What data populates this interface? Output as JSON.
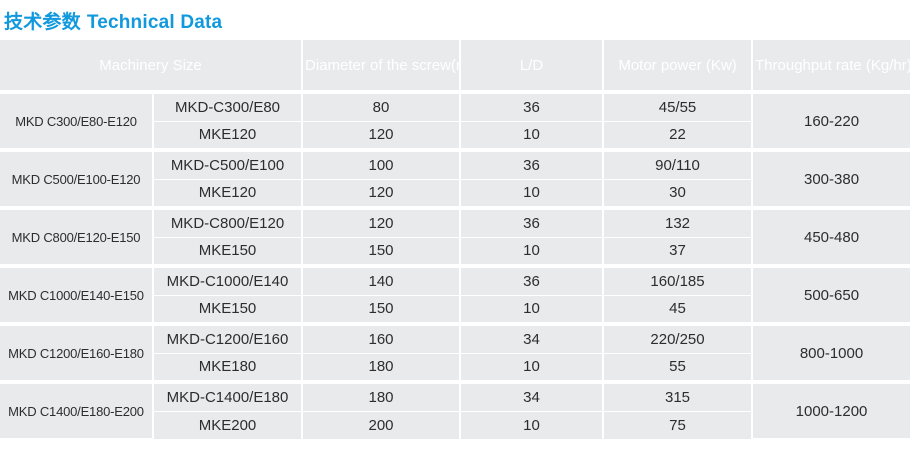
{
  "page": {
    "title_zh": "技术参数",
    "title_en": "Technical Data"
  },
  "colors": {
    "accent_blue": "#1199dd",
    "header_bg": "#6e7277",
    "header_text": "#ffffff",
    "cell_bg": "#e9eaeb",
    "cell_text": "#2d2d2d",
    "grid_line": "#ffffff",
    "page_bg": "#ffffff"
  },
  "table": {
    "headers": {
      "machinery_size": "Machinery Size",
      "diameter": "Diameter of\nthe screw(mm)",
      "ld": "L/D",
      "motor_power": "Motor power\n(Kw)",
      "throughput": "Throughput rate\n(Kg/hr)"
    },
    "groups": [
      {
        "size": "MKD C300/E80-E120",
        "throughput": "160-220",
        "rows": [
          {
            "model": "MKD-C300/E80",
            "diameter": "80",
            "ld": "36",
            "power": "45/55"
          },
          {
            "model": "MKE120",
            "diameter": "120",
            "ld": "10",
            "power": "22"
          }
        ]
      },
      {
        "size": "MKD C500/E100-E120",
        "throughput": "300-380",
        "rows": [
          {
            "model": "MKD-C500/E100",
            "diameter": "100",
            "ld": "36",
            "power": "90/110"
          },
          {
            "model": "MKE120",
            "diameter": "120",
            "ld": "10",
            "power": "30"
          }
        ]
      },
      {
        "size": "MKD C800/E120-E150",
        "throughput": "450-480",
        "rows": [
          {
            "model": "MKD-C800/E120",
            "diameter": "120",
            "ld": "36",
            "power": "132"
          },
          {
            "model": "MKE150",
            "diameter": "150",
            "ld": "10",
            "power": "37"
          }
        ]
      },
      {
        "size": "MKD C1000/E140-E150",
        "throughput": "500-650",
        "rows": [
          {
            "model": "MKD-C1000/E140",
            "diameter": "140",
            "ld": "36",
            "power": "160/185"
          },
          {
            "model": "MKE150",
            "diameter": "150",
            "ld": "10",
            "power": "45"
          }
        ]
      },
      {
        "size": "MKD C1200/E160-E180",
        "throughput": "800-1000",
        "rows": [
          {
            "model": "MKD-C1200/E160",
            "diameter": "160",
            "ld": "34",
            "power": "220/250"
          },
          {
            "model": "MKE180",
            "diameter": "180",
            "ld": "10",
            "power": "55"
          }
        ]
      },
      {
        "size": "MKD C1400/E180-E200",
        "throughput": "1000-1200",
        "rows": [
          {
            "model": "MKD-C1400/E180",
            "diameter": "180",
            "ld": "34",
            "power": "315"
          },
          {
            "model": "MKE200",
            "diameter": "200",
            "ld": "10",
            "power": "75"
          }
        ]
      }
    ]
  }
}
